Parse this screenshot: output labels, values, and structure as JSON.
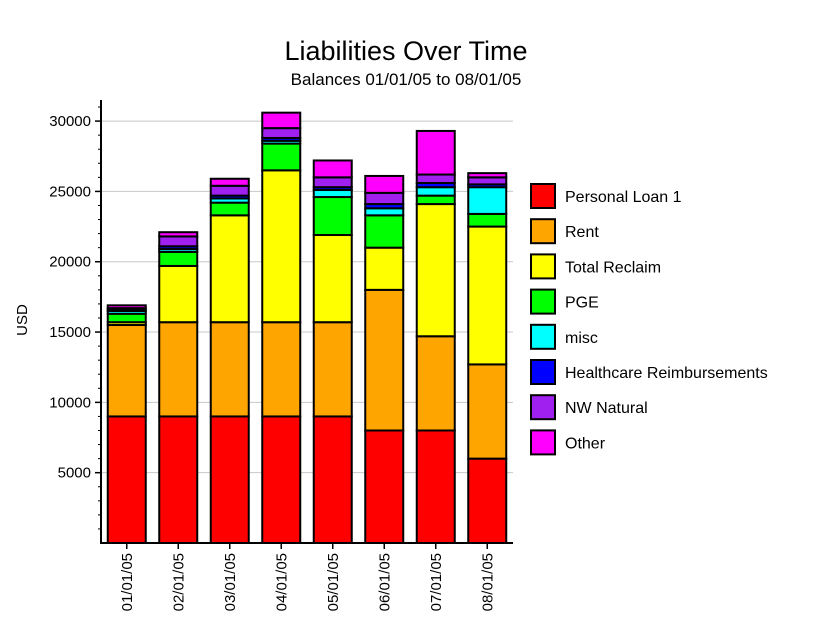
{
  "chart_data": {
    "type": "bar",
    "stacked": true,
    "title": "Liabilities Over Time",
    "subtitle": "Balances 01/01/05 to 08/01/05",
    "ylabel": "USD",
    "xlabel": "",
    "ylim": [
      0,
      31500
    ],
    "yticks": [
      5000,
      10000,
      15000,
      20000,
      25000,
      30000
    ],
    "grid": true,
    "legend_position": "right",
    "categories": [
      "01/01/05",
      "02/01/05",
      "03/01/05",
      "04/01/05",
      "05/01/05",
      "06/01/05",
      "07/01/05",
      "08/01/05"
    ],
    "series": [
      {
        "name": "Personal Loan 1",
        "color": "#ff0000",
        "values": [
          9000,
          9000,
          9000,
          9000,
          9000,
          8000,
          8000,
          6000
        ]
      },
      {
        "name": "Rent",
        "color": "#ffa500",
        "values": [
          6500,
          6700,
          6700,
          6700,
          6700,
          10000,
          6700,
          6700
        ]
      },
      {
        "name": "Total Reclaim",
        "color": "#ffff00",
        "values": [
          200,
          4000,
          7600,
          10800,
          6200,
          3000,
          9400,
          9800
        ]
      },
      {
        "name": "PGE",
        "color": "#00ff00",
        "values": [
          600,
          1000,
          900,
          1900,
          2700,
          2300,
          600,
          900
        ]
      },
      {
        "name": "misc",
        "color": "#00ffff",
        "values": [
          200,
          200,
          300,
          200,
          500,
          500,
          600,
          1900
        ]
      },
      {
        "name": "Healthcare Reimbursements",
        "color": "#0000ff",
        "values": [
          100,
          200,
          200,
          200,
          200,
          300,
          300,
          200
        ]
      },
      {
        "name": "NW Natural",
        "color": "#a020f0",
        "values": [
          100,
          700,
          700,
          700,
          700,
          800,
          600,
          500
        ]
      },
      {
        "name": "Other",
        "color": "#ff00ff",
        "values": [
          200,
          300,
          500,
          1100,
          1200,
          1200,
          3100,
          300
        ]
      }
    ]
  }
}
